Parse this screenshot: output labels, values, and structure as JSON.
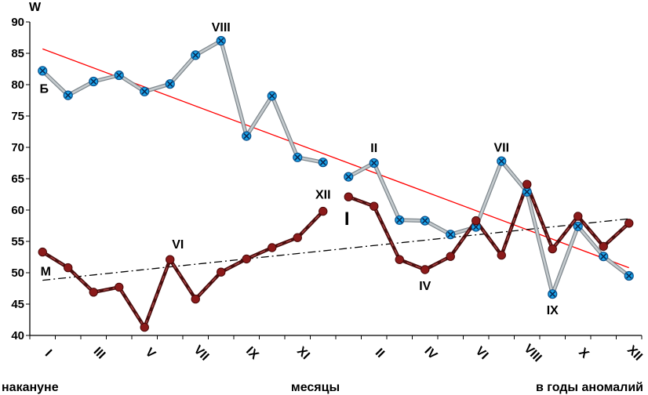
{
  "chart_data": {
    "type": "line",
    "ylabel": "W",
    "ylim": [
      40,
      90
    ],
    "yticks": [
      40,
      45,
      50,
      55,
      60,
      65,
      70,
      75,
      80,
      85,
      90
    ],
    "x_ticks": [
      "I",
      "III",
      "V",
      "VII",
      "IX",
      "XI",
      "II",
      "IV",
      "VI",
      "VIII",
      "X",
      "XII"
    ],
    "tick_positions": [
      1,
      3,
      5,
      7,
      9,
      11,
      14,
      16,
      18,
      20,
      22,
      24
    ],
    "bottom_labels": {
      "left": "накануне",
      "center": "месяцы",
      "right": "в годы аномалий"
    },
    "series": [
      {
        "label": "Б",
        "color": "#a0a8ad",
        "marker": "blue-circle-x",
        "segments": [
          {
            "x": [
              1,
              2,
              3,
              4,
              5,
              6,
              7,
              8,
              9,
              10,
              11,
              12
            ],
            "y": [
              82.2,
              78.3,
              80.5,
              81.5,
              78.9,
              80.1,
              84.7,
              87.0,
              71.8,
              78.2,
              68.4,
              67.6
            ]
          },
          {
            "x": [
              13,
              14,
              15,
              16,
              17,
              18,
              19,
              20,
              21,
              22,
              23,
              24
            ],
            "y": [
              65.3,
              67.5,
              58.4,
              58.3,
              56.1,
              57.3,
              67.8,
              62.9,
              46.6,
              57.4,
              52.6,
              49.5
            ]
          }
        ]
      },
      {
        "label": "М",
        "color": "#6e1c1c",
        "marker": "dark-red-dot",
        "segments": [
          {
            "x": [
              1,
              2,
              3,
              4,
              5,
              6,
              7,
              8,
              9,
              10,
              11,
              12
            ],
            "y": [
              53.3,
              50.8,
              46.9,
              47.7,
              41.3,
              52.1,
              45.8,
              50.1,
              52.2,
              54.0,
              55.6,
              59.8
            ]
          },
          {
            "x": [
              13,
              14,
              15,
              16,
              17,
              18,
              19,
              20,
              21,
              22,
              23,
              24
            ],
            "y": [
              62.1,
              60.6,
              52.1,
              50.5,
              52.6,
              58.3,
              52.8,
              64.1,
              53.8,
              59.0,
              54.2,
              57.9
            ]
          }
        ]
      }
    ],
    "trendlines": [
      {
        "series": "Б",
        "color": "#ff0000",
        "style": "solid",
        "x": [
          1,
          24
        ],
        "y": [
          85.7,
          50.8
        ]
      },
      {
        "series": "М",
        "color": "#000000",
        "style": "dash-dot",
        "x": [
          1,
          24
        ],
        "y": [
          48.8,
          58.6
        ]
      }
    ],
    "annotations": [
      {
        "text": "VIII",
        "x": 8,
        "y": 87.0
      },
      {
        "text": "XII",
        "x": 12,
        "y": 59.8
      },
      {
        "text": "VI",
        "x": 6,
        "y": 52.1
      },
      {
        "text": "II",
        "x": 14,
        "y": 67.5
      },
      {
        "text": "VII",
        "x": 19,
        "y": 67.8
      },
      {
        "text": "IV",
        "x": 16,
        "y": 50.5
      },
      {
        "text": "IX",
        "x": 21,
        "y": 46.6
      },
      {
        "text": "I",
        "x": 13,
        "y": 62.1
      }
    ]
  }
}
